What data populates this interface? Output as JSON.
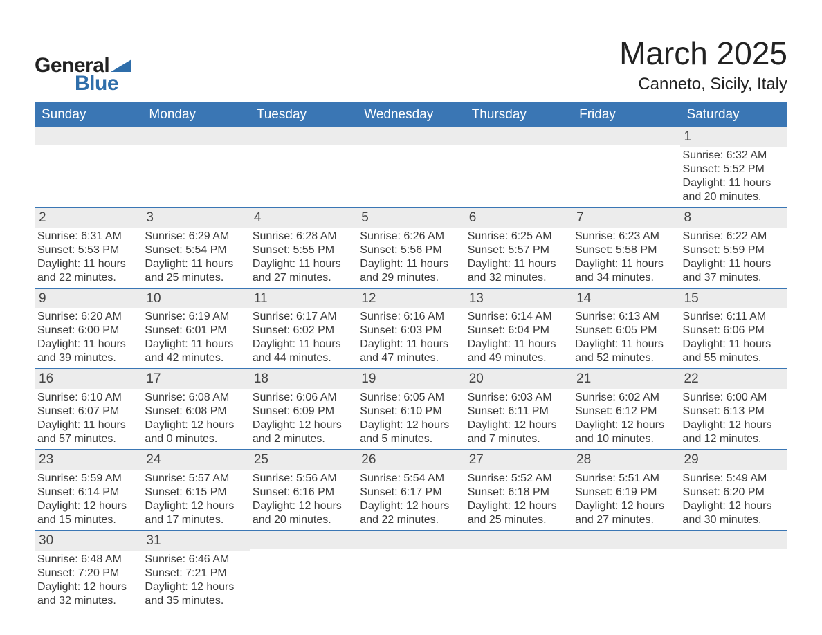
{
  "logo": {
    "text_general": "General",
    "text_blue": "Blue",
    "tri_color": "#2f6eaa"
  },
  "title": "March 2025",
  "location": "Canneto, Sicily, Italy",
  "colors": {
    "header_bg": "#3a76b4",
    "header_text": "#ffffff",
    "daynum_bg": "#ececec",
    "row_border": "#3a76b4",
    "body_text": "#3a3a3a"
  },
  "day_headers": [
    "Sunday",
    "Monday",
    "Tuesday",
    "Wednesday",
    "Thursday",
    "Friday",
    "Saturday"
  ],
  "weeks": [
    [
      {
        "n": "",
        "l1": "",
        "l2": "",
        "l3": "",
        "l4": ""
      },
      {
        "n": "",
        "l1": "",
        "l2": "",
        "l3": "",
        "l4": ""
      },
      {
        "n": "",
        "l1": "",
        "l2": "",
        "l3": "",
        "l4": ""
      },
      {
        "n": "",
        "l1": "",
        "l2": "",
        "l3": "",
        "l4": ""
      },
      {
        "n": "",
        "l1": "",
        "l2": "",
        "l3": "",
        "l4": ""
      },
      {
        "n": "",
        "l1": "",
        "l2": "",
        "l3": "",
        "l4": ""
      },
      {
        "n": "1",
        "l1": "Sunrise: 6:32 AM",
        "l2": "Sunset: 5:52 PM",
        "l3": "Daylight: 11 hours",
        "l4": "and 20 minutes."
      }
    ],
    [
      {
        "n": "2",
        "l1": "Sunrise: 6:31 AM",
        "l2": "Sunset: 5:53 PM",
        "l3": "Daylight: 11 hours",
        "l4": "and 22 minutes."
      },
      {
        "n": "3",
        "l1": "Sunrise: 6:29 AM",
        "l2": "Sunset: 5:54 PM",
        "l3": "Daylight: 11 hours",
        "l4": "and 25 minutes."
      },
      {
        "n": "4",
        "l1": "Sunrise: 6:28 AM",
        "l2": "Sunset: 5:55 PM",
        "l3": "Daylight: 11 hours",
        "l4": "and 27 minutes."
      },
      {
        "n": "5",
        "l1": "Sunrise: 6:26 AM",
        "l2": "Sunset: 5:56 PM",
        "l3": "Daylight: 11 hours",
        "l4": "and 29 minutes."
      },
      {
        "n": "6",
        "l1": "Sunrise: 6:25 AM",
        "l2": "Sunset: 5:57 PM",
        "l3": "Daylight: 11 hours",
        "l4": "and 32 minutes."
      },
      {
        "n": "7",
        "l1": "Sunrise: 6:23 AM",
        "l2": "Sunset: 5:58 PM",
        "l3": "Daylight: 11 hours",
        "l4": "and 34 minutes."
      },
      {
        "n": "8",
        "l1": "Sunrise: 6:22 AM",
        "l2": "Sunset: 5:59 PM",
        "l3": "Daylight: 11 hours",
        "l4": "and 37 minutes."
      }
    ],
    [
      {
        "n": "9",
        "l1": "Sunrise: 6:20 AM",
        "l2": "Sunset: 6:00 PM",
        "l3": "Daylight: 11 hours",
        "l4": "and 39 minutes."
      },
      {
        "n": "10",
        "l1": "Sunrise: 6:19 AM",
        "l2": "Sunset: 6:01 PM",
        "l3": "Daylight: 11 hours",
        "l4": "and 42 minutes."
      },
      {
        "n": "11",
        "l1": "Sunrise: 6:17 AM",
        "l2": "Sunset: 6:02 PM",
        "l3": "Daylight: 11 hours",
        "l4": "and 44 minutes."
      },
      {
        "n": "12",
        "l1": "Sunrise: 6:16 AM",
        "l2": "Sunset: 6:03 PM",
        "l3": "Daylight: 11 hours",
        "l4": "and 47 minutes."
      },
      {
        "n": "13",
        "l1": "Sunrise: 6:14 AM",
        "l2": "Sunset: 6:04 PM",
        "l3": "Daylight: 11 hours",
        "l4": "and 49 minutes."
      },
      {
        "n": "14",
        "l1": "Sunrise: 6:13 AM",
        "l2": "Sunset: 6:05 PM",
        "l3": "Daylight: 11 hours",
        "l4": "and 52 minutes."
      },
      {
        "n": "15",
        "l1": "Sunrise: 6:11 AM",
        "l2": "Sunset: 6:06 PM",
        "l3": "Daylight: 11 hours",
        "l4": "and 55 minutes."
      }
    ],
    [
      {
        "n": "16",
        "l1": "Sunrise: 6:10 AM",
        "l2": "Sunset: 6:07 PM",
        "l3": "Daylight: 11 hours",
        "l4": "and 57 minutes."
      },
      {
        "n": "17",
        "l1": "Sunrise: 6:08 AM",
        "l2": "Sunset: 6:08 PM",
        "l3": "Daylight: 12 hours",
        "l4": "and 0 minutes."
      },
      {
        "n": "18",
        "l1": "Sunrise: 6:06 AM",
        "l2": "Sunset: 6:09 PM",
        "l3": "Daylight: 12 hours",
        "l4": "and 2 minutes."
      },
      {
        "n": "19",
        "l1": "Sunrise: 6:05 AM",
        "l2": "Sunset: 6:10 PM",
        "l3": "Daylight: 12 hours",
        "l4": "and 5 minutes."
      },
      {
        "n": "20",
        "l1": "Sunrise: 6:03 AM",
        "l2": "Sunset: 6:11 PM",
        "l3": "Daylight: 12 hours",
        "l4": "and 7 minutes."
      },
      {
        "n": "21",
        "l1": "Sunrise: 6:02 AM",
        "l2": "Sunset: 6:12 PM",
        "l3": "Daylight: 12 hours",
        "l4": "and 10 minutes."
      },
      {
        "n": "22",
        "l1": "Sunrise: 6:00 AM",
        "l2": "Sunset: 6:13 PM",
        "l3": "Daylight: 12 hours",
        "l4": "and 12 minutes."
      }
    ],
    [
      {
        "n": "23",
        "l1": "Sunrise: 5:59 AM",
        "l2": "Sunset: 6:14 PM",
        "l3": "Daylight: 12 hours",
        "l4": "and 15 minutes."
      },
      {
        "n": "24",
        "l1": "Sunrise: 5:57 AM",
        "l2": "Sunset: 6:15 PM",
        "l3": "Daylight: 12 hours",
        "l4": "and 17 minutes."
      },
      {
        "n": "25",
        "l1": "Sunrise: 5:56 AM",
        "l2": "Sunset: 6:16 PM",
        "l3": "Daylight: 12 hours",
        "l4": "and 20 minutes."
      },
      {
        "n": "26",
        "l1": "Sunrise: 5:54 AM",
        "l2": "Sunset: 6:17 PM",
        "l3": "Daylight: 12 hours",
        "l4": "and 22 minutes."
      },
      {
        "n": "27",
        "l1": "Sunrise: 5:52 AM",
        "l2": "Sunset: 6:18 PM",
        "l3": "Daylight: 12 hours",
        "l4": "and 25 minutes."
      },
      {
        "n": "28",
        "l1": "Sunrise: 5:51 AM",
        "l2": "Sunset: 6:19 PM",
        "l3": "Daylight: 12 hours",
        "l4": "and 27 minutes."
      },
      {
        "n": "29",
        "l1": "Sunrise: 5:49 AM",
        "l2": "Sunset: 6:20 PM",
        "l3": "Daylight: 12 hours",
        "l4": "and 30 minutes."
      }
    ],
    [
      {
        "n": "30",
        "l1": "Sunrise: 6:48 AM",
        "l2": "Sunset: 7:20 PM",
        "l3": "Daylight: 12 hours",
        "l4": "and 32 minutes."
      },
      {
        "n": "31",
        "l1": "Sunrise: 6:46 AM",
        "l2": "Sunset: 7:21 PM",
        "l3": "Daylight: 12 hours",
        "l4": "and 35 minutes."
      },
      {
        "n": "",
        "l1": "",
        "l2": "",
        "l3": "",
        "l4": ""
      },
      {
        "n": "",
        "l1": "",
        "l2": "",
        "l3": "",
        "l4": ""
      },
      {
        "n": "",
        "l1": "",
        "l2": "",
        "l3": "",
        "l4": ""
      },
      {
        "n": "",
        "l1": "",
        "l2": "",
        "l3": "",
        "l4": ""
      },
      {
        "n": "",
        "l1": "",
        "l2": "",
        "l3": "",
        "l4": ""
      }
    ]
  ]
}
